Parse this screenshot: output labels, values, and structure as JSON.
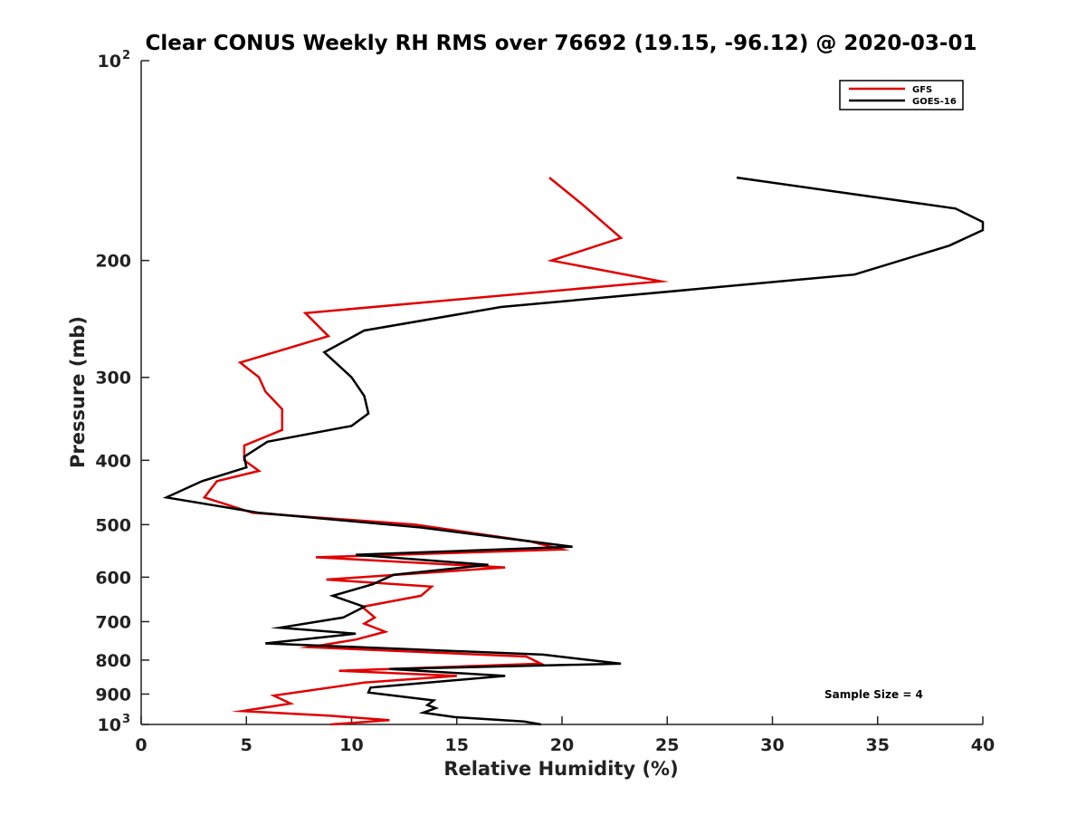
{
  "chart_data": {
    "type": "line",
    "title": "Clear CONUS Weekly RH RMS over 76692 (19.15, -96.12) @ 2020-03-01",
    "xlabel": "Relative Humidity (%)",
    "ylabel": "Pressure (mb)",
    "xlim": [
      0,
      40
    ],
    "ylim": [
      100,
      1000
    ],
    "yscale": "log",
    "y_reversed": true,
    "grid": false,
    "legend_position": "top-right",
    "x_ticks": [
      0,
      5,
      10,
      15,
      20,
      25,
      30,
      35,
      40
    ],
    "y_ticks": [
      {
        "value": 100,
        "base": "10",
        "exp": "2"
      },
      {
        "value": 200,
        "label": "200"
      },
      {
        "value": 300,
        "label": "300"
      },
      {
        "value": 400,
        "label": "400"
      },
      {
        "value": 500,
        "label": "500"
      },
      {
        "value": 600,
        "label": "600"
      },
      {
        "value": 700,
        "label": "700"
      },
      {
        "value": 800,
        "label": "800"
      },
      {
        "value": 900,
        "label": "900"
      },
      {
        "value": 1000,
        "base": "10",
        "exp": "3"
      }
    ],
    "series": [
      {
        "name": "GFS",
        "color": "#e00000",
        "points": [
          [
            19.4,
            150
          ],
          [
            21.0,
            165
          ],
          [
            22.8,
            185
          ],
          [
            19.5,
            200
          ],
          [
            24.7,
            215
          ],
          [
            7.8,
            240
          ],
          [
            8.9,
            260
          ],
          [
            4.7,
            285
          ],
          [
            5.6,
            300
          ],
          [
            5.9,
            315
          ],
          [
            6.7,
            335
          ],
          [
            6.7,
            360
          ],
          [
            4.9,
            380
          ],
          [
            4.9,
            400
          ],
          [
            5.6,
            415
          ],
          [
            3.6,
            430
          ],
          [
            3.0,
            455
          ],
          [
            5.3,
            480
          ],
          [
            13.0,
            500
          ],
          [
            18.5,
            530
          ],
          [
            20.0,
            545
          ],
          [
            8.3,
            560
          ],
          [
            17.3,
            580
          ],
          [
            8.8,
            605
          ],
          [
            13.8,
            620
          ],
          [
            13.3,
            640
          ],
          [
            10.5,
            665
          ],
          [
            11.1,
            690
          ],
          [
            10.6,
            705
          ],
          [
            11.6,
            725
          ],
          [
            10.2,
            745
          ],
          [
            8.0,
            765
          ],
          [
            18.3,
            790
          ],
          [
            19.0,
            810
          ],
          [
            9.4,
            830
          ],
          [
            15.0,
            845
          ],
          [
            10.6,
            865
          ],
          [
            6.3,
            905
          ],
          [
            7.1,
            930
          ],
          [
            4.8,
            955
          ],
          [
            8.9,
            970
          ],
          [
            11.8,
            985
          ],
          [
            9.0,
            1000
          ]
        ]
      },
      {
        "name": "GOES-16",
        "color": "#000000",
        "points": [
          [
            28.3,
            150
          ],
          [
            38.7,
            167
          ],
          [
            40.0,
            175
          ],
          [
            40.0,
            180
          ],
          [
            38.4,
            190
          ],
          [
            33.9,
            210
          ],
          [
            17.1,
            235
          ],
          [
            10.6,
            255
          ],
          [
            8.7,
            275
          ],
          [
            10.0,
            300
          ],
          [
            10.6,
            320
          ],
          [
            10.8,
            340
          ],
          [
            10.0,
            355
          ],
          [
            6.0,
            375
          ],
          [
            4.9,
            395
          ],
          [
            5.0,
            410
          ],
          [
            2.9,
            430
          ],
          [
            1.2,
            455
          ],
          [
            5.6,
            480
          ],
          [
            13.3,
            505
          ],
          [
            20.5,
            540
          ],
          [
            10.2,
            555
          ],
          [
            16.5,
            575
          ],
          [
            12.0,
            595
          ],
          [
            11.0,
            615
          ],
          [
            9.1,
            640
          ],
          [
            10.6,
            665
          ],
          [
            9.6,
            690
          ],
          [
            6.6,
            715
          ],
          [
            10.2,
            730
          ],
          [
            5.9,
            755
          ],
          [
            19.1,
            785
          ],
          [
            22.8,
            810
          ],
          [
            11.8,
            825
          ],
          [
            17.3,
            845
          ],
          [
            10.9,
            880
          ],
          [
            10.8,
            895
          ],
          [
            13.9,
            920
          ],
          [
            13.6,
            935
          ],
          [
            14.0,
            945
          ],
          [
            13.4,
            960
          ],
          [
            14.9,
            975
          ],
          [
            18.2,
            990
          ],
          [
            19.0,
            1000
          ]
        ]
      }
    ],
    "annotations": [
      "Sample Size = 4"
    ]
  }
}
